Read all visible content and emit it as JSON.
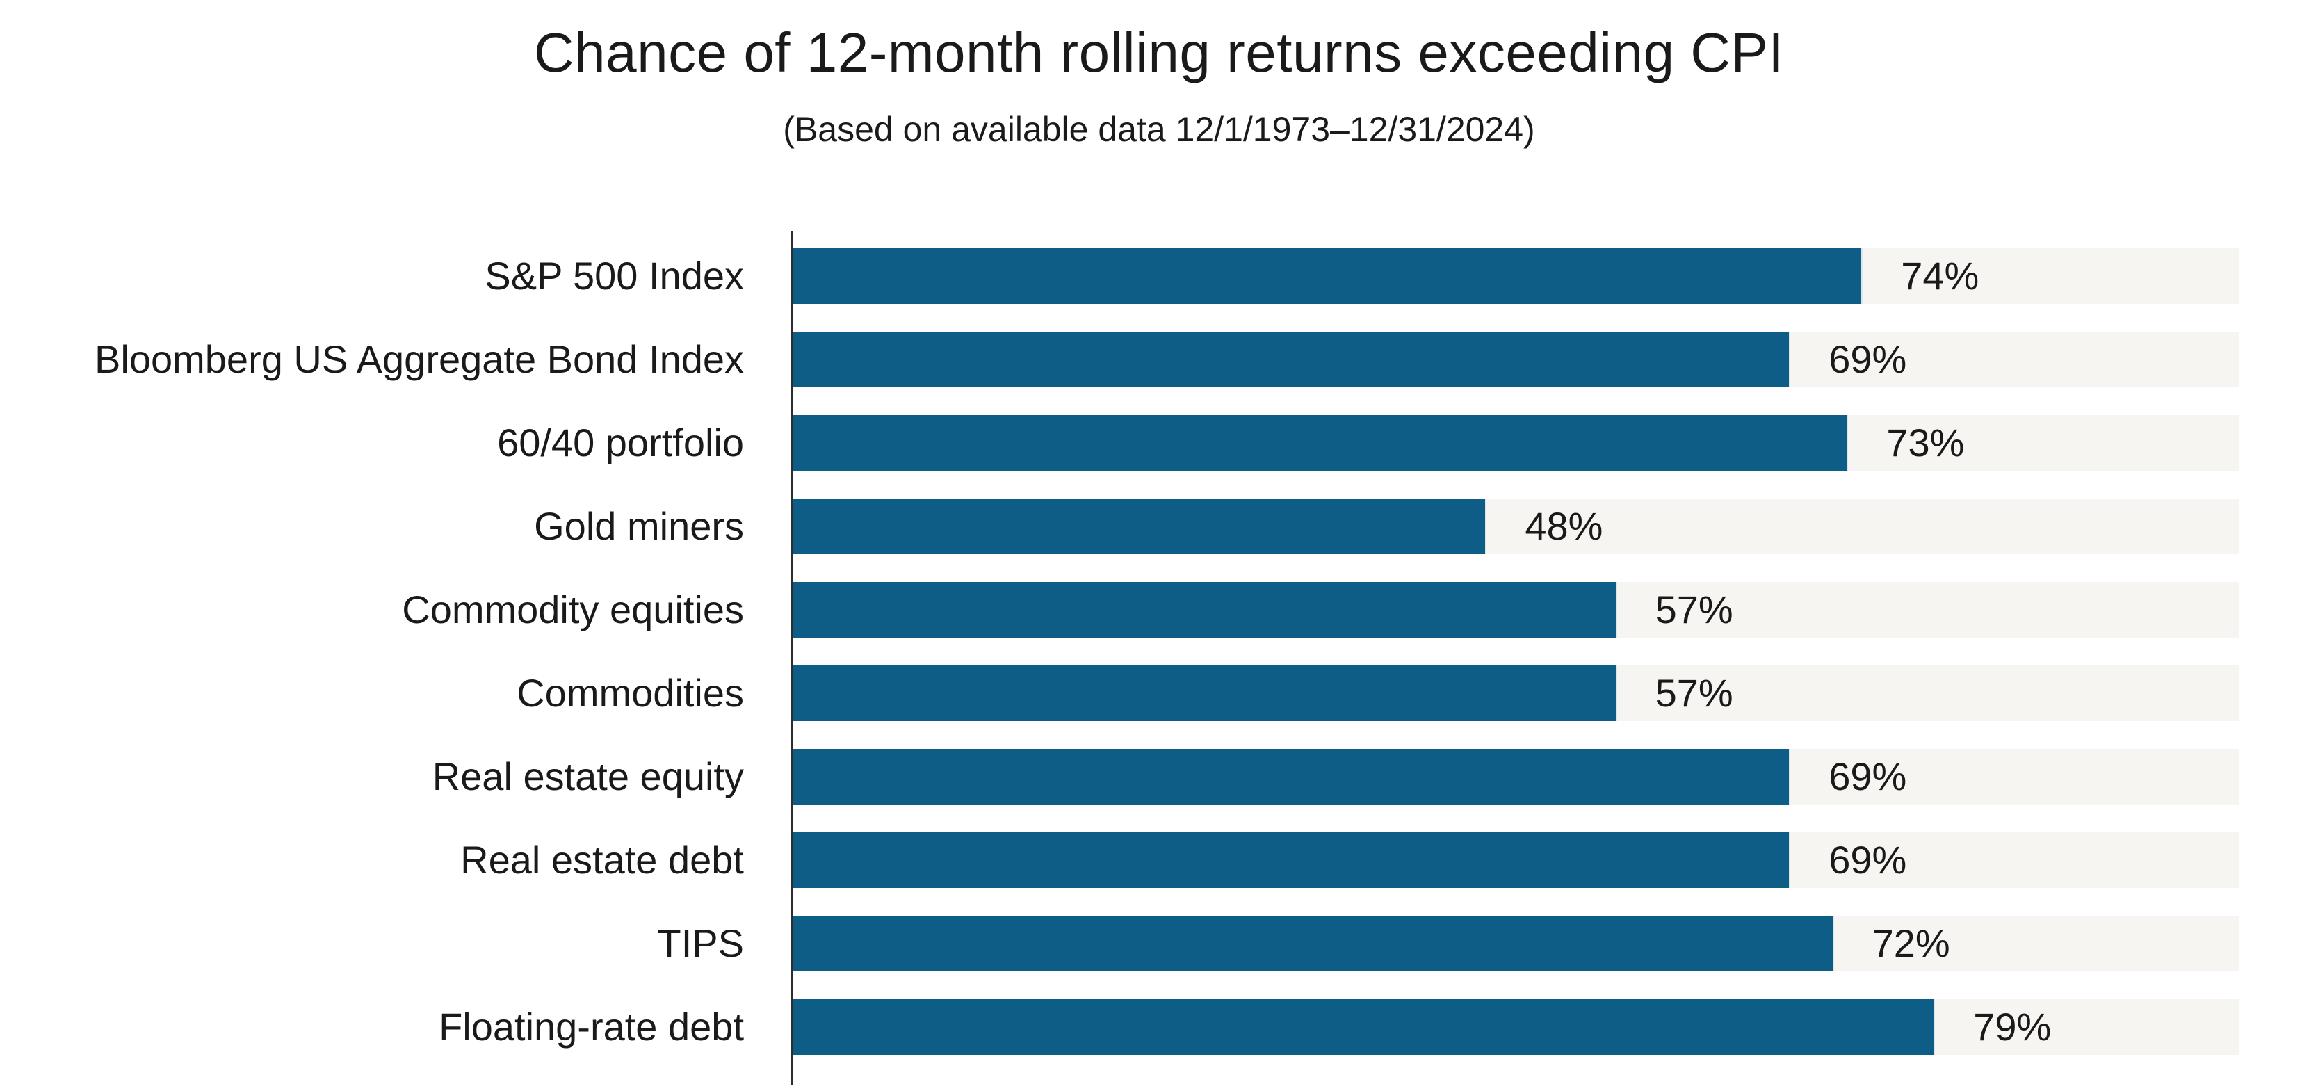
{
  "header": {
    "title": "Chance of 12-month rolling returns exceeding CPI",
    "subtitle": "(Based on available data 12/1/1973–12/31/2024)"
  },
  "colors": {
    "bar": "#0e5d87",
    "track": "#f6f5f2",
    "axis": "#2d2d2d",
    "text": "#1a1a1a",
    "background": "#ffffff"
  },
  "chart_data": {
    "type": "bar",
    "orientation": "horizontal",
    "title": "Chance of 12-month rolling returns exceeding CPI",
    "subtitle": "(Based on available data 12/1/1973–12/31/2024)",
    "categories": [
      "S&P 500 Index",
      "Bloomberg US Aggregate Bond Index",
      "60/40 portfolio",
      "Gold miners",
      "Commodity equities",
      "Commodities",
      "Real estate equity",
      "Real estate debt",
      "TIPS",
      "Floating-rate debt"
    ],
    "values": [
      74,
      69,
      73,
      48,
      57,
      57,
      69,
      69,
      72,
      79
    ],
    "value_labels": [
      "74%",
      "69%",
      "73%",
      "48%",
      "57%",
      "57%",
      "69%",
      "69%",
      "72%",
      "79%"
    ],
    "xlabel": "",
    "ylabel": "",
    "xlim": [
      0,
      100
    ],
    "grid": false,
    "legend": false,
    "value_label_position": "outside-right",
    "full_width_track": true
  }
}
